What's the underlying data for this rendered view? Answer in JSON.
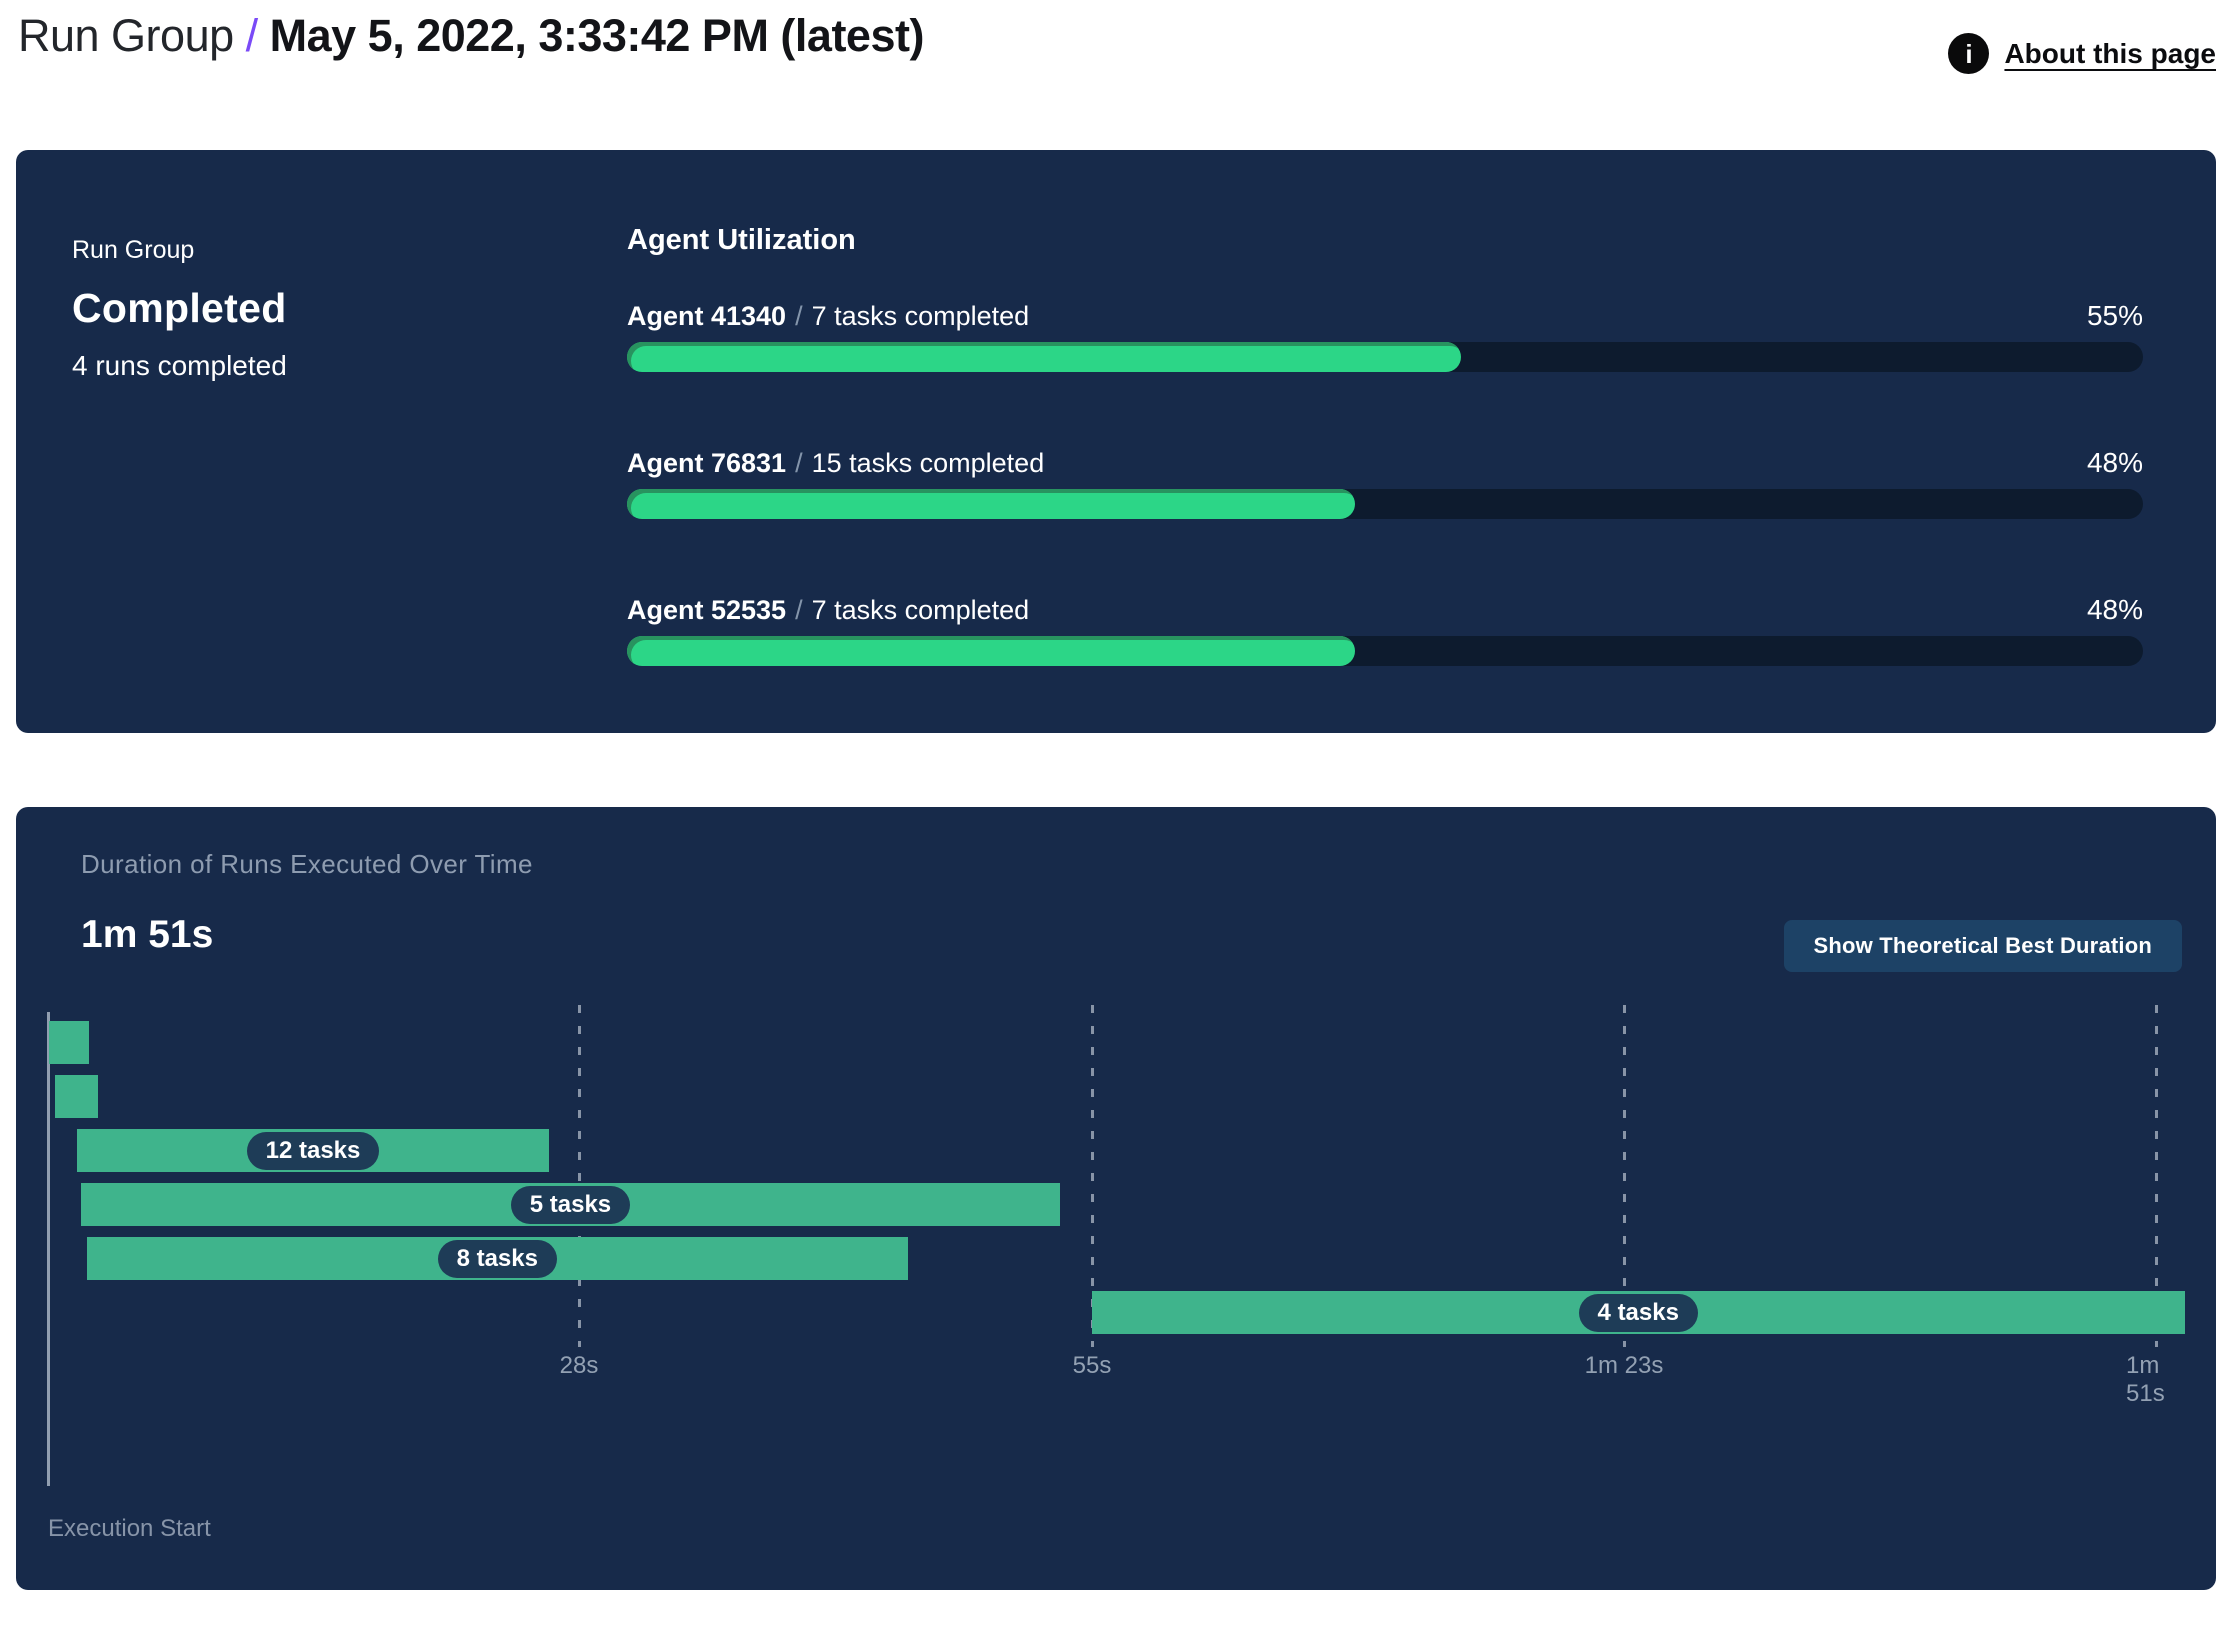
{
  "header": {
    "breadcrumb_root": "Run Group",
    "separator": "/",
    "title": "May 5, 2022, 3:33:42 PM (latest)",
    "about_link": "About this page",
    "info_icon_glyph": "i"
  },
  "summary_panel": {
    "label": "Run Group",
    "status": "Completed",
    "subtitle": "4 runs completed",
    "section_title": "Agent Utilization",
    "separator": "/",
    "agents": [
      {
        "name": "Agent 41340",
        "tasks": "7 tasks completed",
        "percent": 55,
        "percent_label": "55%"
      },
      {
        "name": "Agent 76831",
        "tasks": "15 tasks completed",
        "percent": 48,
        "percent_label": "48%"
      },
      {
        "name": "Agent 52535",
        "tasks": "7 tasks completed",
        "percent": 48,
        "percent_label": "48%"
      }
    ]
  },
  "duration_panel": {
    "title": "Duration of Runs Executed Over Time",
    "total_duration": "1m 51s",
    "button_label": "Show Theoretical Best Duration",
    "execution_start_label": "Execution Start"
  },
  "chart_data": {
    "type": "gantt",
    "title": "Duration of Runs Executed Over Time",
    "total_duration_label": "1m 51s",
    "x_unit": "seconds",
    "xlim": [
      0,
      113
    ],
    "grid": "dashed-vertical-gridlines",
    "axis_start_label": "Execution Start",
    "ticks": [
      {
        "label": "28s",
        "seconds": 28
      },
      {
        "label": "55s",
        "seconds": 55
      },
      {
        "label": "1m 23s",
        "seconds": 83
      },
      {
        "label": "1m 51s",
        "seconds": 111
      }
    ],
    "runs": [
      {
        "row": 1,
        "start_seconds": 0.1,
        "end_seconds": 2.2,
        "label": ""
      },
      {
        "row": 2,
        "start_seconds": 0.4,
        "end_seconds": 2.7,
        "label": ""
      },
      {
        "row": 3,
        "start_seconds": 1.6,
        "end_seconds": 26.4,
        "label": "12 tasks"
      },
      {
        "row": 4,
        "start_seconds": 1.8,
        "end_seconds": 53.3,
        "label": "5 tasks"
      },
      {
        "row": 5,
        "start_seconds": 2.1,
        "end_seconds": 45.3,
        "label": "8 tasks"
      },
      {
        "row": 6,
        "start_seconds": 55.0,
        "end_seconds": 112.5,
        "label": "4 tasks"
      }
    ]
  },
  "colors": {
    "accent": "#7A4AF7",
    "panel": "#172A4A",
    "track": "#0D1B2E",
    "green_bright": "#2CD687",
    "green_rim": "#28935F",
    "green_muted": "#3FB48C",
    "pill": "#1E3C57",
    "button": "#1D4266",
    "text_gray": "#8E9CB0",
    "tick_gray": "#93A1B3",
    "axis_line": "#A7B3C2"
  }
}
